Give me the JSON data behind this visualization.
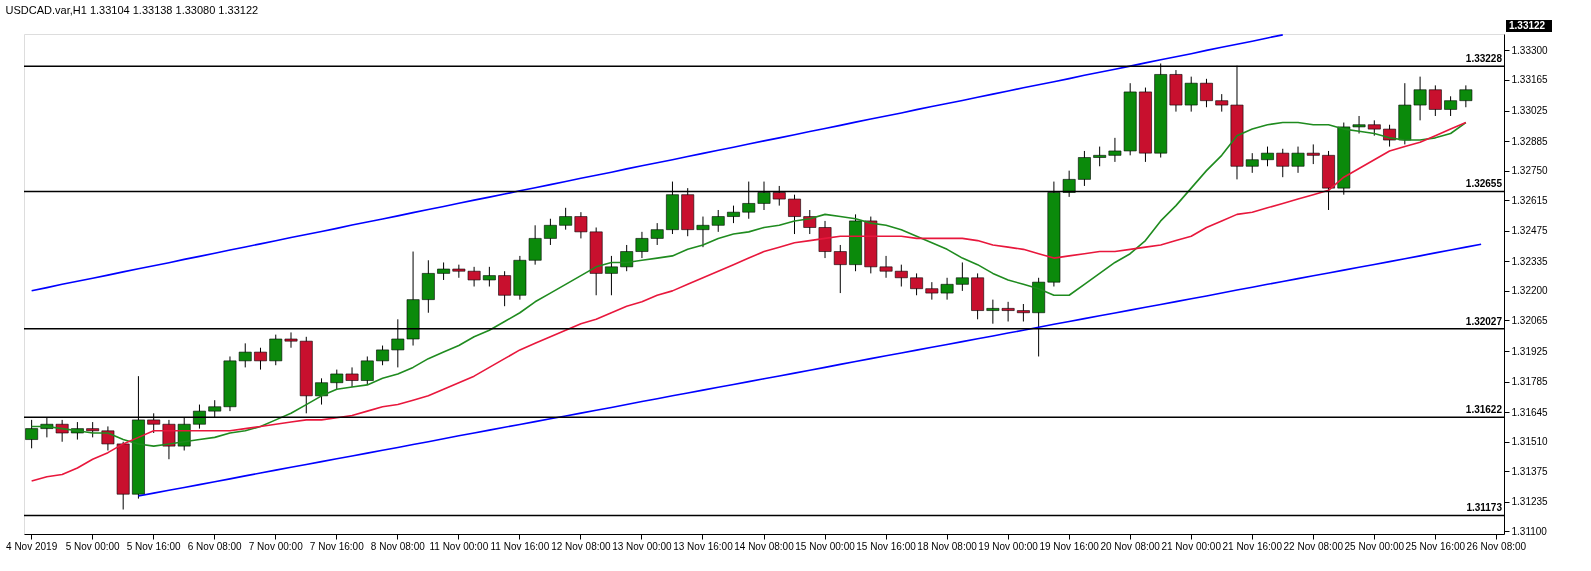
{
  "chart_data": {
    "type": "candlestick",
    "title": "USDCAD.var,H1  1.33104 1.33138 1.33080 1.33122",
    "categories": [
      "4 Nov 2019",
      null,
      null,
      null,
      "5 Nov 00:00",
      null,
      null,
      null,
      "5 Nov 16:00",
      null,
      null,
      null,
      "6 Nov 08:00",
      null,
      null,
      null,
      "7 Nov 00:00",
      null,
      null,
      null,
      "7 Nov 16:00",
      null,
      null,
      null,
      "8 Nov 08:00",
      null,
      null,
      null,
      "11 Nov 00:00",
      null,
      null,
      null,
      "11 Nov 16:00",
      null,
      null,
      null,
      "12 Nov 08:00",
      null,
      null,
      null,
      "13 Nov 00:00",
      null,
      null,
      null,
      "13 Nov 16:00",
      null,
      null,
      null,
      "14 Nov 08:00",
      null,
      null,
      null,
      "15 Nov 00:00",
      null,
      null,
      null,
      "15 Nov 16:00",
      null,
      null,
      null,
      "18 Nov 08:00",
      null,
      null,
      null,
      "19 Nov 00:00",
      null,
      null,
      null,
      "19 Nov 16:00",
      null,
      null,
      null,
      "20 Nov 08:00",
      null,
      null,
      null,
      "21 Nov 00:00",
      null,
      null,
      null,
      "21 Nov 16:00",
      null,
      null,
      null,
      "22 Nov 08:00",
      null,
      null,
      null,
      "25 Nov 00:00",
      null,
      null,
      null,
      "25 Nov 16:00",
      null,
      null,
      null,
      "26 Nov 08:00"
    ],
    "ohlc": [
      [
        1.3152,
        1.3161,
        1.3148,
        1.3157
      ],
      [
        1.3157,
        1.3162,
        1.3153,
        1.3159
      ],
      [
        1.3159,
        1.3161,
        1.3151,
        1.3155
      ],
      [
        1.3155,
        1.316,
        1.3152,
        1.3157
      ],
      [
        1.3157,
        1.316,
        1.3153,
        1.3156
      ],
      [
        1.3156,
        1.3158,
        1.3147,
        1.315
      ],
      [
        1.315,
        1.3151,
        1.312,
        1.3127
      ],
      [
        1.3127,
        1.3181,
        1.3125,
        1.3161
      ],
      [
        1.3161,
        1.3164,
        1.3155,
        1.3159
      ],
      [
        1.3159,
        1.3161,
        1.3143,
        1.3149
      ],
      [
        1.3149,
        1.3162,
        1.3147,
        1.3159
      ],
      [
        1.3159,
        1.3168,
        1.3157,
        1.3165
      ],
      [
        1.3165,
        1.317,
        1.3162,
        1.3167
      ],
      [
        1.3167,
        1.319,
        1.3165,
        1.3188
      ],
      [
        1.3188,
        1.3196,
        1.3185,
        1.3192
      ],
      [
        1.3192,
        1.3194,
        1.3184,
        1.3188
      ],
      [
        1.3188,
        1.32,
        1.3186,
        1.3198
      ],
      [
        1.3198,
        1.3201,
        1.3194,
        1.3197
      ],
      [
        1.3197,
        1.3199,
        1.3164,
        1.3172
      ],
      [
        1.3172,
        1.318,
        1.3168,
        1.3178
      ],
      [
        1.3178,
        1.3184,
        1.3175,
        1.3182
      ],
      [
        1.3182,
        1.3185,
        1.3176,
        1.3179
      ],
      [
        1.3179,
        1.319,
        1.3177,
        1.3188
      ],
      [
        1.3188,
        1.3195,
        1.3186,
        1.3193
      ],
      [
        1.3193,
        1.3207,
        1.3185,
        1.3198
      ],
      [
        1.3198,
        1.3238,
        1.3195,
        1.3216
      ],
      [
        1.3216,
        1.3234,
        1.321,
        1.3228
      ],
      [
        1.3228,
        1.3233,
        1.3225,
        1.323
      ],
      [
        1.323,
        1.3232,
        1.3226,
        1.3229
      ],
      [
        1.3229,
        1.3231,
        1.3222,
        1.3225
      ],
      [
        1.3225,
        1.3231,
        1.3222,
        1.3227
      ],
      [
        1.3227,
        1.3229,
        1.3213,
        1.3218
      ],
      [
        1.3218,
        1.3236,
        1.3216,
        1.3234
      ],
      [
        1.3234,
        1.325,
        1.3232,
        1.3244
      ],
      [
        1.3244,
        1.3253,
        1.3241,
        1.325
      ],
      [
        1.325,
        1.3258,
        1.3248,
        1.3254
      ],
      [
        1.3254,
        1.3256,
        1.3244,
        1.3247
      ],
      [
        1.3247,
        1.3249,
        1.3218,
        1.3228
      ],
      [
        1.3228,
        1.3236,
        1.3218,
        1.3231
      ],
      [
        1.3231,
        1.3241,
        1.3229,
        1.3238
      ],
      [
        1.3238,
        1.3247,
        1.3235,
        1.3244
      ],
      [
        1.3244,
        1.3251,
        1.3241,
        1.3248
      ],
      [
        1.3248,
        1.327,
        1.3246,
        1.3264
      ],
      [
        1.3264,
        1.3267,
        1.3245,
        1.3248
      ],
      [
        1.3248,
        1.3254,
        1.324,
        1.325
      ],
      [
        1.325,
        1.3257,
        1.3247,
        1.3254
      ],
      [
        1.3254,
        1.3259,
        1.3251,
        1.3256
      ],
      [
        1.3256,
        1.327,
        1.3253,
        1.326
      ],
      [
        1.326,
        1.327,
        1.3257,
        1.3265
      ],
      [
        1.3265,
        1.3268,
        1.3259,
        1.3262
      ],
      [
        1.3262,
        1.3264,
        1.3246,
        1.3254
      ],
      [
        1.3254,
        1.3257,
        1.3246,
        1.3249
      ],
      [
        1.3249,
        1.3252,
        1.3235,
        1.3238
      ],
      [
        1.3238,
        1.3241,
        1.3219,
        1.3232
      ],
      [
        1.3232,
        1.3255,
        1.3229,
        1.3252
      ],
      [
        1.3252,
        1.3254,
        1.3228,
        1.3231
      ],
      [
        1.3231,
        1.3236,
        1.3226,
        1.3229
      ],
      [
        1.3229,
        1.3232,
        1.3222,
        1.3226
      ],
      [
        1.3226,
        1.3228,
        1.3218,
        1.3221
      ],
      [
        1.3221,
        1.3224,
        1.3216,
        1.3219
      ],
      [
        1.3219,
        1.3226,
        1.3216,
        1.3223
      ],
      [
        1.3223,
        1.3233,
        1.322,
        1.3226
      ],
      [
        1.3226,
        1.3228,
        1.3207,
        1.3211
      ],
      [
        1.3211,
        1.3216,
        1.3205,
        1.3212
      ],
      [
        1.3212,
        1.3215,
        1.3206,
        1.3211
      ],
      [
        1.3211,
        1.3214,
        1.3206,
        1.321
      ],
      [
        1.321,
        1.3226,
        1.319,
        1.3224
      ],
      [
        1.3224,
        1.327,
        1.3222,
        1.3265
      ],
      [
        1.3265,
        1.3275,
        1.3263,
        1.3271
      ],
      [
        1.3271,
        1.3284,
        1.3268,
        1.3281
      ],
      [
        1.3281,
        1.3286,
        1.3277,
        1.3282
      ],
      [
        1.3282,
        1.329,
        1.3279,
        1.3284
      ],
      [
        1.3284,
        1.3315,
        1.3282,
        1.3311
      ],
      [
        1.3311,
        1.3313,
        1.3279,
        1.3283
      ],
      [
        1.3283,
        1.3324,
        1.3281,
        1.3319
      ],
      [
        1.3319,
        1.3321,
        1.3302,
        1.3305
      ],
      [
        1.3305,
        1.3318,
        1.3302,
        1.3315
      ],
      [
        1.3315,
        1.3317,
        1.3304,
        1.3307
      ],
      [
        1.3307,
        1.331,
        1.3302,
        1.3305
      ],
      [
        1.3305,
        1.3323,
        1.3271,
        1.3277
      ],
      [
        1.3277,
        1.3283,
        1.3274,
        1.328
      ],
      [
        1.328,
        1.3286,
        1.3277,
        1.3283
      ],
      [
        1.3283,
        1.3285,
        1.3272,
        1.3277
      ],
      [
        1.3277,
        1.3286,
        1.3274,
        1.3283
      ],
      [
        1.3283,
        1.3287,
        1.3278,
        1.3282
      ],
      [
        1.3282,
        1.3284,
        1.3257,
        1.3267
      ],
      [
        1.3267,
        1.3297,
        1.3264,
        1.3295
      ],
      [
        1.3295,
        1.33,
        1.3292,
        1.3296
      ],
      [
        1.3296,
        1.3298,
        1.3291,
        1.3294
      ],
      [
        1.3294,
        1.3296,
        1.3286,
        1.3289
      ],
      [
        1.3289,
        1.3315,
        1.3287,
        1.3305
      ],
      [
        1.3305,
        1.3318,
        1.3298,
        1.3312
      ],
      [
        1.3312,
        1.3314,
        1.33,
        1.3303
      ],
      [
        1.3303,
        1.3309,
        1.33,
        1.3307
      ],
      [
        1.3307,
        1.3314,
        1.3304,
        1.3312
      ],
      null,
      null
    ],
    "colors": [
      "#0b8a0b",
      "#0b8a0b",
      "#c8102e",
      "#0b8a0b",
      "#c8102e",
      "#c8102e",
      "#c8102e",
      "#0b8a0b",
      "#c8102e",
      "#c8102e",
      "#0b8a0b",
      "#0b8a0b",
      "#0b8a0b",
      "#0b8a0b",
      "#0b8a0b",
      "#c8102e",
      "#0b8a0b",
      "#c8102e",
      "#c8102e",
      "#0b8a0b",
      "#0b8a0b",
      "#c8102e",
      "#0b8a0b",
      "#0b8a0b",
      "#0b8a0b",
      "#0b8a0b",
      "#0b8a0b",
      "#0b8a0b",
      "#c8102e",
      "#c8102e",
      "#0b8a0b",
      "#c8102e",
      "#0b8a0b",
      "#0b8a0b",
      "#0b8a0b",
      "#0b8a0b",
      "#c8102e",
      "#c8102e",
      "#0b8a0b",
      "#0b8a0b",
      "#0b8a0b",
      "#0b8a0b",
      "#0b8a0b",
      "#c8102e",
      "#0b8a0b",
      "#0b8a0b",
      "#0b8a0b",
      "#0b8a0b",
      "#0b8a0b",
      "#c8102e",
      "#c8102e",
      "#c8102e",
      "#c8102e",
      "#c8102e",
      "#0b8a0b",
      "#c8102e",
      "#c8102e",
      "#c8102e",
      "#c8102e",
      "#c8102e",
      "#0b8a0b",
      "#0b8a0b",
      "#c8102e",
      "#0b8a0b",
      "#c8102e",
      "#c8102e",
      "#0b8a0b",
      "#0b8a0b",
      "#0b8a0b",
      "#0b8a0b",
      "#0b8a0b",
      "#0b8a0b",
      "#0b8a0b",
      "#c8102e",
      "#0b8a0b",
      "#c8102e",
      "#0b8a0b",
      "#c8102e",
      "#c8102e",
      "#c8102e",
      "#0b8a0b",
      "#0b8a0b",
      "#c8102e",
      "#0b8a0b",
      "#c8102e",
      "#c8102e",
      "#0b8a0b",
      "#0b8a0b",
      "#c8102e",
      "#c8102e",
      "#0b8a0b",
      "#0b8a0b",
      "#c8102e",
      "#0b8a0b",
      "#0b8a0b",
      null,
      null
    ],
    "series": [
      {
        "type": "line",
        "color": "#1f8b1f",
        "values": [
          1.3158,
          1.3158,
          1.3157,
          1.3156,
          1.3155,
          1.3155,
          1.3152,
          1.315,
          1.3149,
          1.315,
          1.3151,
          1.3152,
          1.3153,
          1.3155,
          1.3156,
          1.3158,
          1.3161,
          1.3164,
          1.3168,
          1.3172,
          1.3175,
          1.3176,
          1.3177,
          1.318,
          1.3182,
          1.3185,
          1.3189,
          1.3192,
          1.3195,
          1.3199,
          1.3202,
          1.3206,
          1.321,
          1.3215,
          1.3219,
          1.3223,
          1.3227,
          1.3231,
          1.3233,
          1.3233,
          1.3234,
          1.3235,
          1.3236,
          1.3239,
          1.3241,
          1.3244,
          1.3246,
          1.3247,
          1.3249,
          1.325,
          1.3252,
          1.3253,
          1.3255,
          1.3254,
          1.3253,
          1.3251,
          1.325,
          1.3248,
          1.3245,
          1.3242,
          1.3239,
          1.3235,
          1.3232,
          1.3228,
          1.3225,
          1.3223,
          1.3221,
          1.3218,
          1.3218,
          1.3223,
          1.3228,
          1.3233,
          1.3237,
          1.3243,
          1.3252,
          1.3259,
          1.3267,
          1.3275,
          1.3282,
          1.3291,
          1.3294,
          1.3296,
          1.3297,
          1.3297,
          1.3296,
          1.3296,
          1.3294,
          1.3293,
          1.3292,
          1.329,
          1.3289,
          1.3289,
          1.329,
          1.3292,
          1.3297,
          null,
          null
        ]
      },
      {
        "type": "line",
        "color": "#e8173c",
        "values": [
          1.3133,
          1.3135,
          1.3136,
          1.3139,
          1.3143,
          1.3146,
          1.315,
          1.3153,
          1.3156,
          1.3156,
          1.3156,
          1.3156,
          1.3156,
          1.3156,
          1.3157,
          1.3158,
          1.3159,
          1.316,
          1.3161,
          1.3161,
          1.3162,
          1.3163,
          1.3165,
          1.3167,
          1.3168,
          1.317,
          1.3172,
          1.3175,
          1.3178,
          1.3181,
          1.3185,
          1.3189,
          1.3193,
          1.3196,
          1.3199,
          1.3202,
          1.3205,
          1.3207,
          1.321,
          1.3213,
          1.3215,
          1.3218,
          1.322,
          1.3223,
          1.3226,
          1.3229,
          1.3232,
          1.3235,
          1.3238,
          1.324,
          1.3242,
          1.3243,
          1.3244,
          1.3245,
          1.3245,
          1.3245,
          1.3245,
          1.3245,
          1.3244,
          1.3244,
          1.3244,
          1.3244,
          1.3243,
          1.3241,
          1.324,
          1.3239,
          1.3237,
          1.3235,
          1.3236,
          1.3237,
          1.3238,
          1.3238,
          1.3239,
          1.324,
          1.3241,
          1.3243,
          1.3245,
          1.3249,
          1.3252,
          1.3255,
          1.3256,
          1.3258,
          1.326,
          1.3262,
          1.3264,
          1.3266,
          1.3272,
          1.3276,
          1.328,
          1.3284,
          1.3286,
          1.3288,
          1.3291,
          1.3294,
          1.3297,
          null,
          null
        ]
      },
      {
        "type": "line",
        "color": "#0000ff",
        "values": [
          1.32201,
          1.32215,
          1.3223,
          1.32244,
          1.32258,
          1.32272,
          1.32287,
          1.32301,
          1.32315,
          1.32329,
          1.32344,
          1.32358,
          1.32372,
          1.32387,
          1.32401,
          1.32415,
          1.32429,
          1.32444,
          1.32458,
          1.32472,
          1.32486,
          1.32501,
          1.32515,
          1.32529,
          1.32543,
          1.32558,
          1.32572,
          1.32586,
          1.32601,
          1.32615,
          1.32629,
          1.32643,
          1.32658,
          1.32672,
          1.32686,
          1.327,
          1.32715,
          1.32729,
          1.32743,
          1.32758,
          1.32772,
          1.32786,
          1.328,
          1.32815,
          1.32829,
          1.32843,
          1.32857,
          1.32872,
          1.32886,
          1.329,
          1.32914,
          1.32929,
          1.32943,
          1.32957,
          1.32972,
          1.32986,
          1.33,
          1.33014,
          1.33029,
          1.33043,
          1.33057,
          1.33071,
          1.33086,
          1.331,
          1.33114,
          1.33129,
          1.33143,
          1.33157,
          1.33171,
          1.33186,
          1.332,
          1.33214,
          1.33228,
          1.33243,
          1.33257,
          1.33271,
          1.33285,
          1.333,
          1.33314,
          1.33328,
          1.33342,
          1.33357,
          1.33371,
          null,
          null,
          null,
          null,
          null,
          null,
          null,
          null,
          null,
          null,
          null,
          null,
          null,
          null
        ]
      },
      {
        "type": "line",
        "color": "#0000ff",
        "values": [
          null,
          null,
          null,
          null,
          null,
          null,
          null,
          1.31262,
          1.31275,
          1.31288,
          1.31301,
          1.31314,
          1.31327,
          1.3134,
          1.31354,
          1.31367,
          1.3138,
          1.31393,
          1.31406,
          1.31419,
          1.31432,
          1.31445,
          1.31458,
          1.31471,
          1.31484,
          1.31497,
          1.3151,
          1.31524,
          1.31537,
          1.3155,
          1.31563,
          1.31576,
          1.31589,
          1.31602,
          1.31615,
          1.31628,
          1.31641,
          1.31654,
          1.31667,
          1.3168,
          1.31694,
          1.31707,
          1.3172,
          1.31733,
          1.31746,
          1.31759,
          1.31772,
          1.31785,
          1.31798,
          1.31811,
          1.31824,
          1.31837,
          1.3185,
          1.31864,
          1.31877,
          1.3189,
          1.31903,
          1.31916,
          1.31929,
          1.31942,
          1.31955,
          1.31968,
          1.31981,
          1.31994,
          1.32007,
          1.3202,
          1.32034,
          1.32047,
          1.3206,
          1.32073,
          1.32086,
          1.32099,
          1.32112,
          1.32125,
          1.32138,
          1.32151,
          1.32164,
          1.32177,
          1.3219,
          1.32204,
          1.32217,
          1.3223,
          1.32243,
          1.32256,
          1.32269,
          1.32282,
          1.32295,
          1.32308,
          1.32321,
          1.32334,
          1.32347,
          1.3236,
          1.32374,
          1.32387,
          1.324,
          1.32413,
          null
        ]
      }
    ],
    "ref_lines": [
      {
        "axis": "y",
        "value": 1.33228,
        "label": "1.33228",
        "color": "#000000"
      },
      {
        "axis": "y",
        "value": 1.32655,
        "label": "1.32655",
        "color": "#000000"
      },
      {
        "axis": "y",
        "value": 1.32027,
        "label": "1.32027",
        "color": "#000000"
      },
      {
        "axis": "y",
        "value": 1.31622,
        "label": "1.31622",
        "color": "#000000"
      },
      {
        "axis": "y",
        "value": 1.31173,
        "label": "1.31173",
        "color": "#000000"
      }
    ],
    "annotations": [
      "1.33122"
    ],
    "ylim": [
      1.31088,
      1.33375
    ],
    "yticks": [
      {
        "value": 1.333,
        "label": "1.33300"
      },
      1.33165,
      1.33025,
      1.32885,
      {
        "value": 1.3275,
        "label": "1.32750"
      },
      1.32615,
      1.32475,
      1.32335,
      {
        "value": 1.322,
        "label": "1.32200"
      },
      1.32065,
      1.31925,
      1.31785,
      1.31645,
      {
        "value": 1.3151,
        "label": "1.31510"
      },
      1.31375,
      1.31235,
      {
        "value": 1.311,
        "label": "1.31100"
      }
    ],
    "grid": false
  }
}
